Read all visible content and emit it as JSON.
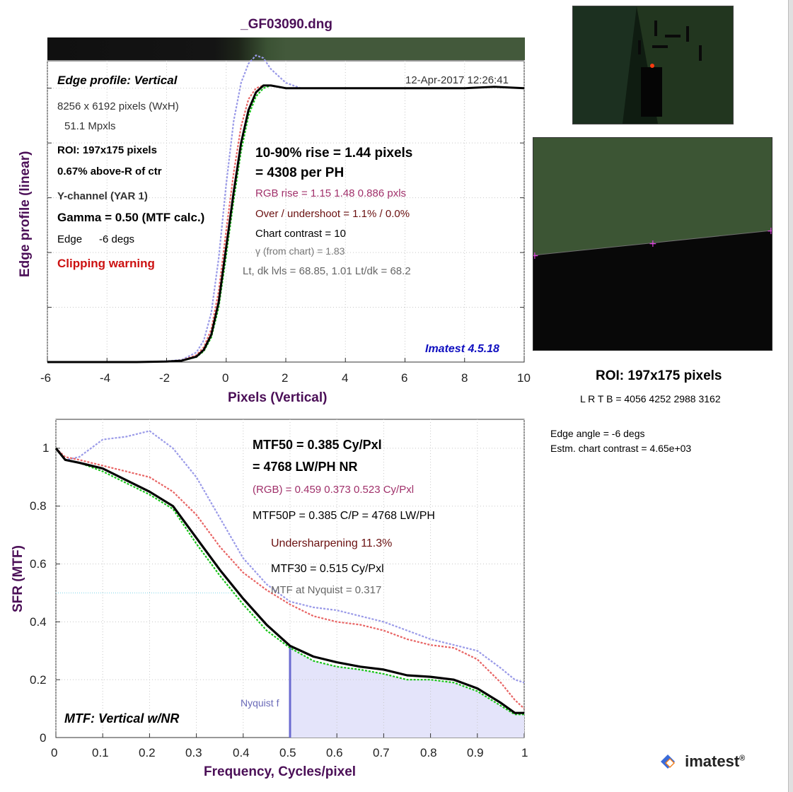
{
  "file_title": "_GF03090.dng",
  "top_panel": {
    "heading": "Edge profile: Vertical",
    "timestamp": "12-Apr-2017 12:26:41",
    "dims": "8256 x 6192 pixels (WxH)",
    "mpxls": "51.1 Mpxls",
    "roi": "ROI:  197x175 pixels",
    "roi_pos": "0.67% above-R of ctr",
    "channel": "Y-channel  (YAR 1)",
    "gamma": "Gamma = 0.50 (MTF calc.)",
    "edge_label": "Edge",
    "edge_value": "-6 degs",
    "clipping": "Clipping warning",
    "rise1": "10-90% rise = 1.44 pixels",
    "rise2": "=   4308 per PH",
    "rgb_rise": "RGB rise =   1.15    1.48   0.886 pxls",
    "overshoot": "Over / undershoot =  1.1% /  0.0%",
    "chart_contrast": "Chart contrast = 10",
    "gamma_chart": "γ (from chart) =  1.83",
    "levels": "Lt, dk lvls =  68.85,    1.01    Lt/dk =   68.2",
    "version": "Imatest 4.5.18",
    "xlabel": "Pixels (Vertical)",
    "ylabel": "Edge profile (linear)",
    "xticks": [
      "-6",
      "-4",
      "-2",
      "0",
      "2",
      "4",
      "6",
      "8",
      "10"
    ]
  },
  "right_panel": {
    "roi_title": "ROI:  197x175 pixels",
    "roi_coords": "L R  T B = 4056 4252  2988 3162",
    "edge_angle": "Edge angle = -6 degs",
    "est_contrast": "Estm. chart contrast = 4.65e+03"
  },
  "bottom_panel": {
    "mtf50": "MTF50 = 0.385 Cy/Pxl",
    "mtf50_lw": "= 4768 LW/PH  NR",
    "rgb": "(RGB) = 0.459  0.373  0.523 Cy/Pxl",
    "mtf50p": "MTF50P = 0.385 C/P = 4768 LW/PH",
    "undersharp": "Undersharpening 11.3%",
    "mtf30": "MTF30 = 0.515 Cy/Pxl",
    "nyquist_mtf": "MTF at Nyquist = 0.317",
    "nyquist_label": "Nyquist f",
    "caption": "MTF: Vertical w/NR",
    "xlabel": "Frequency, Cycles/pixel",
    "ylabel": "SFR (MTF)",
    "xticks": [
      "0",
      "0.1",
      "0.2",
      "0.3",
      "0.4",
      "0.5",
      "0.6",
      "0.7",
      "0.8",
      "0.9",
      "1"
    ],
    "yticks": [
      "0",
      "0.2",
      "0.4",
      "0.6",
      "0.8",
      "1"
    ]
  },
  "logo_text": "imatest",
  "colors": {
    "title": "#4b0f57",
    "luminance": "#000000",
    "red": "#e86464",
    "green": "#18c418",
    "blue": "#9a9ae8",
    "nyquist_fill": "#e4e4fa",
    "warning": "#cc1111",
    "version": "#1010c0",
    "rgb_text": "#a0306a",
    "overshoot_text": "#6a1010"
  },
  "chart_data": [
    {
      "type": "line",
      "title": "Edge profile: Vertical",
      "xlabel": "Pixels (Vertical)",
      "ylabel": "Edge profile (linear)",
      "xlim": [
        -6,
        10
      ],
      "ylim": [
        0,
        1.15
      ],
      "grid": true,
      "series": [
        {
          "color": "black",
          "x": [
            -6,
            -3,
            -2,
            -1.5,
            -1,
            -0.75,
            -0.5,
            -0.25,
            0,
            0.25,
            0.5,
            0.75,
            1,
            1.25,
            1.5,
            2,
            3,
            4,
            5,
            6,
            7,
            8,
            9,
            10
          ],
          "y": [
            0,
            0,
            0.002,
            0.005,
            0.02,
            0.045,
            0.1,
            0.22,
            0.42,
            0.62,
            0.8,
            0.92,
            0.985,
            1.01,
            1.01,
            1.0,
            1.0,
            1.0,
            1.0,
            1.0,
            1.0,
            1.0,
            1.005,
            1.0
          ]
        },
        {
          "color": "red",
          "x": [
            -6,
            -3,
            -2,
            -1.5,
            -1,
            -0.75,
            -0.5,
            -0.25,
            0,
            0.25,
            0.5,
            0.75,
            1,
            1.25,
            1.5,
            2,
            3,
            4,
            5,
            6,
            7,
            8,
            9,
            10
          ],
          "y": [
            0,
            0,
            0.002,
            0.006,
            0.025,
            0.055,
            0.12,
            0.26,
            0.48,
            0.69,
            0.86,
            0.96,
            1.0,
            1.01,
            1.01,
            1.0,
            1.0,
            1.0,
            1.0,
            1.0,
            1.0,
            1.0,
            1.005,
            1.0
          ]
        },
        {
          "color": "green",
          "x": [
            -6,
            -3,
            -2,
            -1.5,
            -1,
            -0.75,
            -0.5,
            -0.25,
            0,
            0.25,
            0.5,
            0.75,
            1,
            1.25,
            1.5,
            2,
            3,
            4,
            5,
            6,
            7,
            8,
            9,
            10
          ],
          "y": [
            0,
            0,
            0.002,
            0.005,
            0.018,
            0.04,
            0.09,
            0.2,
            0.39,
            0.59,
            0.77,
            0.9,
            0.97,
            1.0,
            1.01,
            1.0,
            1.0,
            1.0,
            1.0,
            1.0,
            1.0,
            1.0,
            1.005,
            1.0
          ]
        },
        {
          "color": "blue",
          "x": [
            -6,
            -3,
            -2,
            -1.5,
            -1,
            -0.75,
            -0.5,
            -0.25,
            0,
            0.25,
            0.5,
            0.75,
            1,
            1.25,
            1.5,
            2,
            2.5,
            3,
            4,
            5,
            6,
            7,
            8,
            9,
            10
          ],
          "y": [
            0,
            0,
            0.003,
            0.008,
            0.035,
            0.08,
            0.18,
            0.38,
            0.65,
            0.88,
            1.02,
            1.09,
            1.12,
            1.11,
            1.07,
            1.02,
            1.0,
            1.0,
            1.0,
            1.0,
            1.0,
            1.0,
            1.0,
            1.005,
            1.0
          ]
        }
      ]
    },
    {
      "type": "line",
      "title": "MTF: Vertical w/NR",
      "xlabel": "Frequency, Cycles/pixel",
      "ylabel": "SFR (MTF)",
      "xlim": [
        0,
        1
      ],
      "ylim": [
        0,
        1.1
      ],
      "grid": true,
      "series": [
        {
          "color": "black",
          "x": [
            0,
            0.02,
            0.05,
            0.1,
            0.15,
            0.2,
            0.25,
            0.3,
            0.35,
            0.4,
            0.45,
            0.5,
            0.55,
            0.6,
            0.65,
            0.7,
            0.75,
            0.8,
            0.85,
            0.9,
            0.95,
            0.98,
            1.0
          ],
          "y": [
            1.0,
            0.96,
            0.95,
            0.93,
            0.89,
            0.85,
            0.8,
            0.69,
            0.58,
            0.48,
            0.39,
            0.317,
            0.28,
            0.26,
            0.245,
            0.235,
            0.215,
            0.21,
            0.2,
            0.17,
            0.12,
            0.085,
            0.085
          ]
        },
        {
          "color": "red",
          "x": [
            0,
            0.02,
            0.05,
            0.1,
            0.15,
            0.2,
            0.25,
            0.3,
            0.35,
            0.4,
            0.45,
            0.5,
            0.55,
            0.6,
            0.65,
            0.7,
            0.75,
            0.8,
            0.85,
            0.9,
            0.95,
            0.98,
            1.0
          ],
          "y": [
            1.0,
            0.97,
            0.96,
            0.94,
            0.92,
            0.9,
            0.85,
            0.77,
            0.66,
            0.57,
            0.51,
            0.46,
            0.42,
            0.4,
            0.39,
            0.37,
            0.34,
            0.32,
            0.31,
            0.27,
            0.19,
            0.13,
            0.1
          ]
        },
        {
          "color": "green",
          "x": [
            0,
            0.02,
            0.05,
            0.1,
            0.15,
            0.2,
            0.25,
            0.3,
            0.35,
            0.4,
            0.45,
            0.5,
            0.55,
            0.6,
            0.65,
            0.7,
            0.75,
            0.8,
            0.85,
            0.9,
            0.95,
            0.98,
            1.0
          ],
          "y": [
            1.0,
            0.96,
            0.95,
            0.92,
            0.88,
            0.84,
            0.79,
            0.67,
            0.56,
            0.46,
            0.37,
            0.31,
            0.265,
            0.245,
            0.235,
            0.22,
            0.2,
            0.2,
            0.19,
            0.16,
            0.11,
            0.08,
            0.08
          ]
        },
        {
          "color": "blue",
          "x": [
            0,
            0.02,
            0.05,
            0.1,
            0.15,
            0.2,
            0.25,
            0.3,
            0.35,
            0.4,
            0.45,
            0.5,
            0.55,
            0.6,
            0.65,
            0.7,
            0.75,
            0.8,
            0.85,
            0.9,
            0.95,
            0.98,
            1.0
          ],
          "y": [
            1.0,
            0.96,
            0.97,
            1.03,
            1.04,
            1.06,
            1.0,
            0.9,
            0.76,
            0.62,
            0.53,
            0.47,
            0.45,
            0.44,
            0.42,
            0.4,
            0.37,
            0.34,
            0.32,
            0.3,
            0.24,
            0.2,
            0.19
          ]
        }
      ]
    }
  ]
}
